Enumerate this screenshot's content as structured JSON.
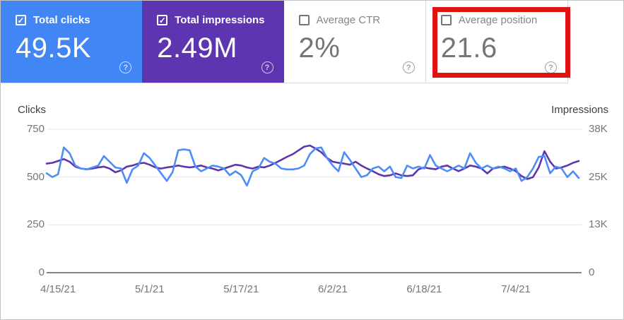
{
  "cards": [
    {
      "id": "total-clicks",
      "label": "Total clicks",
      "value": "49.5K",
      "checked": true,
      "bg": "#4285f4"
    },
    {
      "id": "total-impressions",
      "label": "Total impressions",
      "value": "2.49M",
      "checked": true,
      "bg": "#5e35b1"
    },
    {
      "id": "average-ctr",
      "label": "Average CTR",
      "value": "2%",
      "checked": false,
      "bg": "#ffffff"
    },
    {
      "id": "average-position",
      "label": "Average position",
      "value": "21.6",
      "checked": false,
      "bg": "#ffffff",
      "highlighted": true
    }
  ],
  "help_glyph": "?",
  "annotation": {
    "shape": "rectangle",
    "color": "#e01313",
    "target": "average-position-card"
  },
  "chart_data": {
    "type": "line",
    "title": "",
    "grid": true,
    "legend_position": "none",
    "left_axis": {
      "label": "Clicks",
      "max": 750,
      "ticks": [
        0,
        250,
        500,
        750
      ],
      "tick_labels": [
        "0",
        "250",
        "500",
        "750"
      ]
    },
    "right_axis": {
      "label": "Impressions",
      "max": 38000,
      "ticks": [
        0,
        13000,
        25000,
        38000
      ],
      "tick_labels": [
        "0",
        "13K",
        "25K",
        "38K"
      ]
    },
    "x_tick_labels": [
      "4/15/21",
      "5/1/21",
      "5/17/21",
      "6/2/21",
      "6/18/21",
      "7/4/21"
    ],
    "x_tick_day_index": [
      2,
      18,
      34,
      50,
      66,
      82
    ],
    "series": [
      {
        "name": "Clicks",
        "axis": "left",
        "color": "#4c8df6",
        "values": [
          520,
          500,
          515,
          655,
          625,
          560,
          545,
          540,
          550,
          560,
          610,
          580,
          550,
          545,
          470,
          540,
          560,
          625,
          600,
          560,
          520,
          480,
          525,
          640,
          645,
          640,
          555,
          530,
          545,
          560,
          555,
          545,
          510,
          530,
          510,
          455,
          530,
          545,
          600,
          580,
          570,
          545,
          540,
          540,
          545,
          560,
          620,
          650,
          655,
          600,
          560,
          530,
          630,
          590,
          545,
          500,
          510,
          545,
          555,
          530,
          555,
          500,
          495,
          560,
          545,
          555,
          545,
          615,
          560,
          545,
          530,
          545,
          560,
          545,
          625,
          575,
          545,
          560,
          545,
          555,
          545,
          530,
          545,
          480,
          500,
          545,
          605,
          610,
          520,
          555,
          545,
          500,
          530,
          495
        ]
      },
      {
        "name": "Impressions",
        "axis": "right",
        "color": "#5e35b1",
        "values": [
          28900,
          29100,
          29600,
          30100,
          29400,
          28100,
          27600,
          27400,
          27600,
          27900,
          28100,
          27600,
          26600,
          27100,
          28100,
          28400,
          28900,
          29100,
          28600,
          27900,
          27600,
          27900,
          28100,
          28400,
          28100,
          27900,
          28100,
          28400,
          27900,
          27600,
          27100,
          27600,
          28100,
          28600,
          28400,
          27900,
          27600,
          28100,
          27900,
          28400,
          29100,
          29900,
          30700,
          31400,
          32400,
          33400,
          33700,
          32900,
          31900,
          30400,
          29400,
          29100,
          28900,
          28600,
          29400,
          28400,
          27600,
          26900,
          26100,
          25600,
          25800,
          26300,
          25800,
          25600,
          25800,
          27400,
          27900,
          27600,
          27400,
          28100,
          28400,
          27600,
          26900,
          27600,
          28400,
          28100,
          27600,
          26300,
          27600,
          27900,
          28100,
          27600,
          26900,
          25600,
          24800,
          25300,
          27900,
          32200,
          29400,
          27600,
          27900,
          28400,
          29100,
          29600
        ]
      }
    ]
  }
}
